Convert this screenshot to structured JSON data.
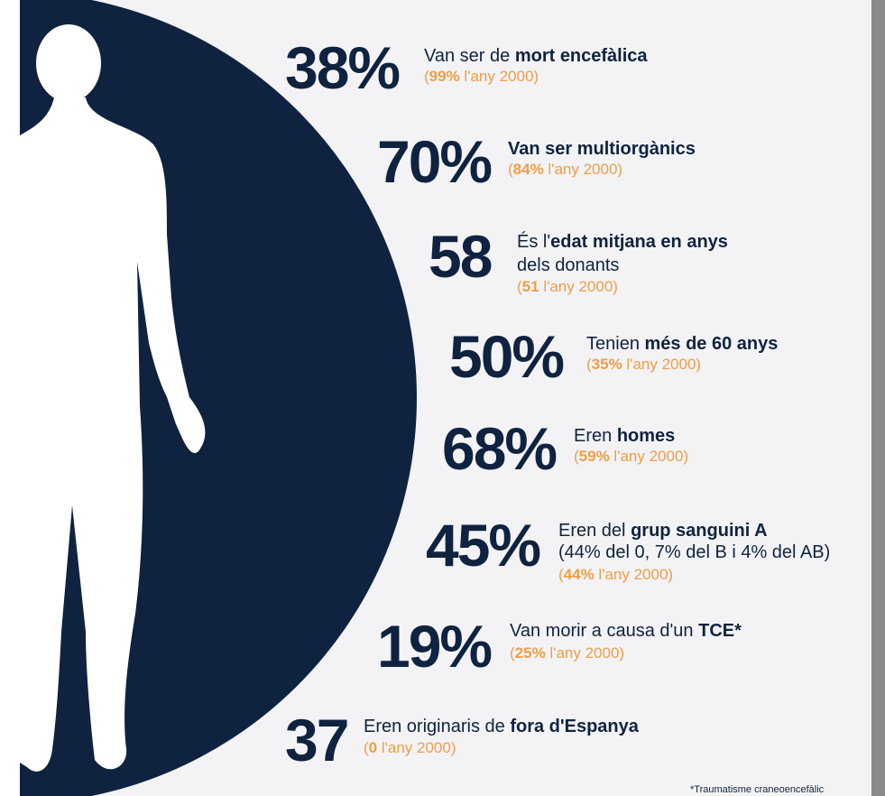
{
  "items": [
    {
      "number": "38%",
      "description": [
        [
          {
            "text": "Van ser de ",
            "bold": false
          },
          {
            "text": "mort encefàlica",
            "bold": true
          }
        ]
      ],
      "comparison": [
        {
          "text": "(",
          "bold": false
        },
        {
          "text": "99%",
          "bold": true
        },
        {
          "text": " l'any 2000)",
          "bold": false
        }
      ]
    },
    {
      "number": "70%",
      "description": [
        [
          {
            "text": "Van ser multiorgànics",
            "bold": true
          }
        ]
      ],
      "comparison": [
        {
          "text": "(",
          "bold": false
        },
        {
          "text": "84%",
          "bold": true
        },
        {
          "text": " l'any 2000)",
          "bold": false
        }
      ]
    },
    {
      "number": "58",
      "description": [
        [
          {
            "text": "És l'",
            "bold": false
          },
          {
            "text": "edat mitjana en anys",
            "bold": true
          }
        ],
        [
          {
            "text": "dels donants",
            "bold": false
          }
        ]
      ],
      "comparison": [
        {
          "text": "(",
          "bold": false
        },
        {
          "text": "51",
          "bold": true
        },
        {
          "text": " l'any 2000)",
          "bold": false
        }
      ]
    },
    {
      "number": "50%",
      "description": [
        [
          {
            "text": "Tenien ",
            "bold": false
          },
          {
            "text": "més de 60 anys",
            "bold": true
          }
        ]
      ],
      "comparison": [
        {
          "text": "(",
          "bold": false
        },
        {
          "text": "35%",
          "bold": true
        },
        {
          "text": " l'any 2000)",
          "bold": false
        }
      ]
    },
    {
      "number": "68%",
      "description": [
        [
          {
            "text": "Eren ",
            "bold": false
          },
          {
            "text": "homes",
            "bold": true
          }
        ]
      ],
      "comparison": [
        {
          "text": "(",
          "bold": false
        },
        {
          "text": "59%",
          "bold": true
        },
        {
          "text": " l'any 2000)",
          "bold": false
        }
      ]
    },
    {
      "number": "45%",
      "description": [
        [
          {
            "text": "Eren del ",
            "bold": false
          },
          {
            "text": "grup sanguini A",
            "bold": true
          }
        ],
        [
          {
            "text": "(44% del 0, 7% del B i 4% del AB)",
            "bold": false
          }
        ]
      ],
      "comparison": [
        {
          "text": "(",
          "bold": false
        },
        {
          "text": "44%",
          "bold": true
        },
        {
          "text": " l'any 2000)",
          "bold": false
        }
      ]
    },
    {
      "number": "19%",
      "description": [
        [
          {
            "text": "Van morir a causa d'un ",
            "bold": false
          },
          {
            "text": "TCE*",
            "bold": true
          }
        ]
      ],
      "comparison": [
        {
          "text": "(",
          "bold": false
        },
        {
          "text": "25%",
          "bold": true
        },
        {
          "text": " l'any 2000)",
          "bold": false
        }
      ]
    },
    {
      "number": "37",
      "description": [
        [
          {
            "text": "Eren originaris de ",
            "bold": false
          },
          {
            "text": "fora d'Espanya",
            "bold": true
          }
        ]
      ],
      "comparison": [
        {
          "text": "(",
          "bold": false
        },
        {
          "text": "0",
          "bold": true
        },
        {
          "text": " l'any 2000)",
          "bold": false
        }
      ]
    }
  ],
  "footnote": "*Traumatisme craneoencefàlic"
}
